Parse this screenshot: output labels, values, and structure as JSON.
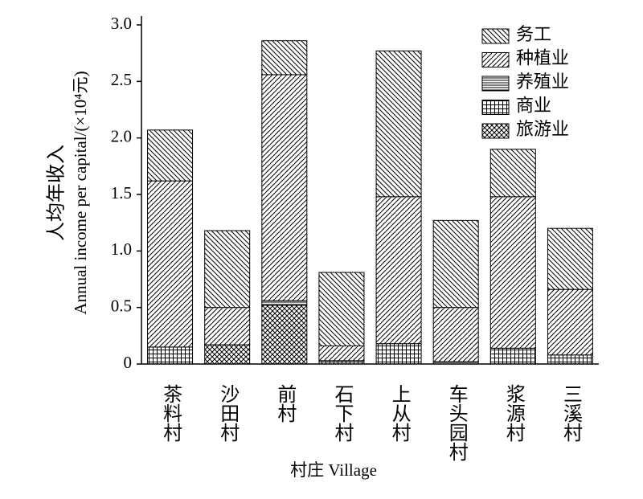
{
  "chart_data": {
    "type": "stacked_bar",
    "y_label_lines": [
      "人均年收入",
      "Annual income per capital/(×10⁴元)"
    ],
    "x_label": "村庄 Village",
    "categories": [
      "茶料村",
      "沙田村",
      "前村",
      "石下村",
      "上从村",
      "车头园村",
      "浆源村",
      "三溪村"
    ],
    "series": [
      {
        "name": "务工",
        "color": "#000000",
        "hatch": "backslash",
        "values": [
          0.45,
          0.68,
          0.3,
          0.65,
          1.29,
          0.77,
          0.42,
          0.54
        ]
      },
      {
        "name": "种植业",
        "color": "#000000",
        "hatch": "slash",
        "values": [
          1.47,
          0.33,
          2.0,
          0.13,
          1.3,
          0.48,
          1.34,
          0.58
        ]
      },
      {
        "name": "养殖业",
        "color": "#000000",
        "hatch": "horizontal",
        "values": [
          0,
          0,
          0.04,
          0,
          0,
          0.02,
          0,
          0
        ]
      },
      {
        "name": "商业",
        "color": "#000000",
        "hatch": "grid",
        "values": [
          0.15,
          0,
          0,
          0.03,
          0.18,
          0,
          0.14,
          0.08
        ]
      },
      {
        "name": "旅游业",
        "color": "#000000",
        "hatch": "cross",
        "values": [
          0,
          0.17,
          0.52,
          0,
          0,
          0,
          0,
          0
        ]
      }
    ],
    "ylim": [
      0,
      3.0
    ],
    "yticks": [
      0,
      0.5,
      {
        "value": 1.0,
        "label": "1.0"
      },
      1.5,
      {
        "value": 2.0,
        "label": "2.0"
      },
      2.5,
      {
        "value": 3.0,
        "label": "3.0"
      }
    ],
    "legend": "top-right"
  }
}
